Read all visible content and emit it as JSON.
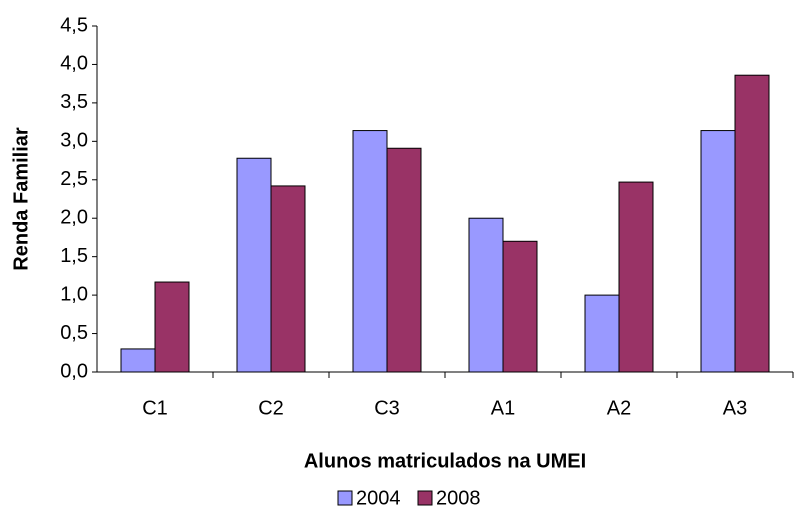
{
  "chart_data": {
    "type": "bar",
    "xlabel": "Alunos matriculados na UMEI",
    "ylabel": "Renda Familiar",
    "categories": [
      "C1",
      "C2",
      "C3",
      "A1",
      "A2",
      "A3"
    ],
    "series": [
      {
        "name": "2004",
        "color": "#9999ff",
        "values": [
          0.3,
          2.78,
          3.14,
          2.0,
          1.0,
          3.14
        ]
      },
      {
        "name": "2008",
        "color": "#993366",
        "values": [
          1.17,
          2.42,
          2.91,
          1.7,
          2.47,
          3.86
        ]
      }
    ],
    "ylim": [
      0,
      4.5
    ],
    "yticks": [
      {
        "value": 0,
        "label": "0,0"
      },
      {
        "value": 0.5,
        "label": "0,5"
      },
      {
        "value": 1,
        "label": "1,0"
      },
      {
        "value": 1.5,
        "label": "1,5"
      },
      {
        "value": 2,
        "label": "2,0"
      },
      {
        "value": 2.5,
        "label": "2,5"
      },
      {
        "value": 3,
        "label": "3,0"
      },
      {
        "value": 3.5,
        "label": "3,5"
      },
      {
        "value": 4,
        "label": "4,0"
      },
      {
        "value": 4.5,
        "label": "4,5"
      }
    ],
    "grid": false,
    "legend": "bottom"
  }
}
